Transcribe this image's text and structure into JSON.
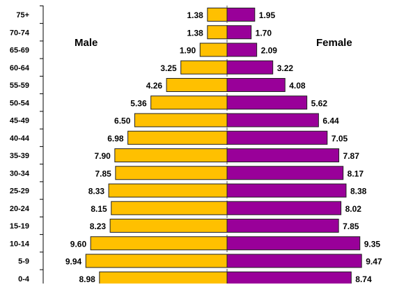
{
  "chart_data": {
    "type": "bar",
    "orientation": "horizontal",
    "layout": "population-pyramid",
    "categories": [
      "75+",
      "70-74",
      "65-69",
      "60-64",
      "55-59",
      "50-54",
      "45-49",
      "40-44",
      "35-39",
      "30-34",
      "25-29",
      "20-24",
      "15-19",
      "10-14",
      "5-9",
      "0-4"
    ],
    "series": [
      {
        "name": "Male",
        "side": "left",
        "color": "#FFC000",
        "values": [
          1.38,
          1.38,
          1.9,
          3.25,
          4.26,
          5.36,
          6.5,
          6.98,
          7.9,
          7.85,
          8.33,
          8.15,
          8.23,
          9.6,
          9.94,
          8.98
        ]
      },
      {
        "name": "Female",
        "side": "right",
        "color": "#990099",
        "values": [
          1.95,
          1.7,
          2.09,
          3.22,
          4.08,
          5.62,
          6.44,
          7.05,
          7.87,
          8.17,
          8.38,
          8.02,
          7.85,
          9.35,
          9.47,
          8.74
        ]
      }
    ],
    "value_format": "2-decimal",
    "data_labels": true,
    "title": "",
    "xlabel": "",
    "ylabel": "",
    "xlim": [
      0,
      12
    ],
    "grid": false
  }
}
